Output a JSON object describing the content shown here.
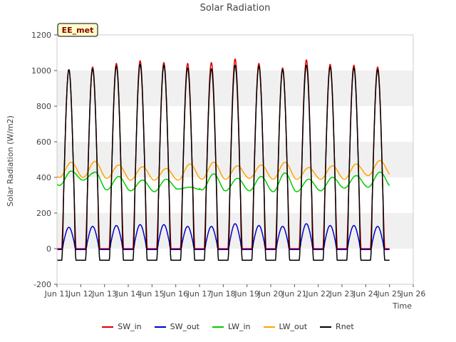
{
  "chart_data": {
    "type": "line",
    "title": "Solar Radiation",
    "xlabel": "Time",
    "ylabel": "Solar Radiation (W/m2)",
    "badge": "EE_met",
    "ylim": [
      -200,
      1200
    ],
    "yticks": [
      -200,
      0,
      200,
      400,
      600,
      800,
      1000,
      1200
    ],
    "xlim": [
      "Jun 11",
      "Jun 26"
    ],
    "xticks": [
      "Jun 11",
      "Jun 12",
      "Jun 13",
      "Jun 14",
      "Jun 15",
      "Jun 16",
      "Jun 17",
      "Jun 18",
      "Jun 19",
      "Jun 20",
      "Jun 21",
      "Jun 22",
      "Jun 23",
      "Jun 24",
      "Jun 25",
      "Jun 26"
    ],
    "grid": "horizontal bands",
    "legend_position": "bottom",
    "day_index": [
      11,
      12,
      13,
      14,
      15,
      16,
      17,
      18,
      19,
      20,
      21,
      22,
      23,
      24
    ],
    "series": [
      {
        "name": "SW_in",
        "color": "#dd0000",
        "kind": "solar_peak",
        "daily_peak": [
          1005,
          1020,
          1040,
          1055,
          1045,
          1040,
          1045,
          1065,
          1040,
          1015,
          1060,
          1035,
          1030,
          1020
        ],
        "night_value": 0
      },
      {
        "name": "SW_out",
        "color": "#0000cc",
        "kind": "solar_peak",
        "daily_peak": [
          120,
          125,
          130,
          135,
          135,
          125,
          125,
          140,
          130,
          125,
          140,
          130,
          130,
          125
        ],
        "night_value": -5
      },
      {
        "name": "LW_in",
        "color": "#00cc00",
        "kind": "diurnal",
        "daily_peak": [
          435,
          430,
          405,
          385,
          390,
          345,
          420,
          395,
          405,
          425,
          390,
          400,
          410,
          430
        ],
        "daily_min": [
          355,
          385,
          330,
          325,
          320,
          335,
          330,
          325,
          325,
          320,
          320,
          325,
          340,
          345
        ]
      },
      {
        "name": "LW_out",
        "color": "#ffa500",
        "kind": "diurnal",
        "daily_peak": [
          485,
          490,
          470,
          460,
          450,
          475,
          485,
          465,
          470,
          485,
          455,
          465,
          475,
          495
        ],
        "daily_min": [
          400,
          400,
          395,
          385,
          385,
          385,
          390,
          390,
          395,
          390,
          390,
          390,
          390,
          410
        ]
      },
      {
        "name": "Rnet",
        "color": "#000000",
        "kind": "solar_peak",
        "daily_peak": [
          1005,
          1010,
          1025,
          1035,
          1030,
          1015,
          1010,
          1030,
          1025,
          1005,
          1030,
          1020,
          1015,
          1005
        ],
        "night_value": -65
      }
    ]
  }
}
